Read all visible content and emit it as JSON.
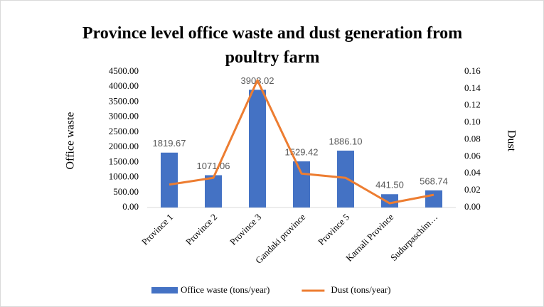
{
  "chart_data": {
    "type": "bar_line",
    "title": "Province level office waste and dust generation from poultry farm",
    "ylabel": "Office waste",
    "y2label": "Dust",
    "categories": [
      "Province 1",
      "Province 2",
      "Province 3",
      "Gandaki province",
      "Province 5",
      "Karnali Province",
      "Sudurpaschim…"
    ],
    "series": [
      {
        "name": "Office waste (tons/year)",
        "color": "#4472c4",
        "type": "bar",
        "values": [
          1819.67,
          1071.06,
          3903.02,
          1529.42,
          1886.1,
          441.5,
          568.74
        ],
        "value_labels": [
          "1819.67",
          "1071.06",
          "3903.02",
          "1529.42",
          "1886.10",
          "441.50",
          "568.74"
        ]
      },
      {
        "name": "Dust (tons/year)",
        "color": "#ed7d31",
        "type": "line",
        "axis": "y2",
        "values": [
          0.027,
          0.035,
          0.15,
          0.04,
          0.035,
          0.005,
          0.015
        ]
      }
    ],
    "ylim": [
      0,
      4500
    ],
    "yticks": [
      {
        "value": 0,
        "label": "0.00"
      },
      {
        "value": 500,
        "label": "500.00"
      },
      {
        "value": 1000,
        "label": "1000.00"
      },
      {
        "value": 1500,
        "label": "1500.00"
      },
      {
        "value": 2000,
        "label": "2000.00"
      },
      {
        "value": 2500,
        "label": "2500.00"
      },
      {
        "value": 3000,
        "label": "3000.00"
      },
      {
        "value": 3500,
        "label": "3500.00"
      },
      {
        "value": 4000,
        "label": "4000.00"
      },
      {
        "value": 4500,
        "label": "4500.00"
      }
    ],
    "y2lim": [
      0,
      0.16
    ],
    "y2ticks": [
      {
        "value": 0,
        "label": "0.00"
      },
      0.02,
      0.04,
      0.06,
      0.08,
      {
        "value": 0.1,
        "label": "0.10"
      },
      0.12,
      0.14,
      0.16
    ],
    "legend": "bottom"
  }
}
